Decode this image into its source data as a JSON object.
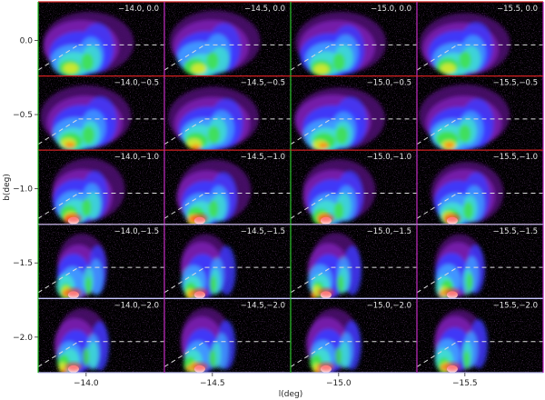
{
  "figure": {
    "xlabel": "l(deg)",
    "ylabel": "b(deg)",
    "x_ticks": [
      "−14.0",
      "−14.5",
      "−15.0",
      "−15.5"
    ],
    "y_ticks": [
      "0.0",
      "−0.5",
      "−1.0",
      "−1.5",
      "−2.0"
    ],
    "rows": [
      {
        "b": "0.0",
        "border": "#d22020",
        "panels": [
          "−14.0, 0.0",
          "−14.5, 0.0",
          "−15.0, 0.0",
          "−15.5, 0.0"
        ]
      },
      {
        "b": "-0.5",
        "border": "#d22020",
        "panels": [
          "−14.0,−0.5",
          "−14.5,−0.5",
          "−15.0,−0.5",
          "−15.5,−0.5"
        ]
      },
      {
        "b": "-1.0",
        "border": "#d22020",
        "panels": [
          "−14.0,−1.0",
          "−14.5,−1.0",
          "−15.0,−1.0",
          "−15.5,−1.0"
        ]
      },
      {
        "b": "-1.5",
        "border": "#c8c8ff",
        "panels": [
          "−14.0,−1.5",
          "−14.5,−1.5",
          "−15.0,−1.5",
          "−15.5,−1.5"
        ]
      },
      {
        "b": "-2.0",
        "border": "#c8c8ff",
        "panels": [
          "−14.0,−2.0",
          "−14.5,−2.0",
          "−15.0,−2.0",
          "−15.5,−2.0"
        ]
      }
    ],
    "column_border_colors": [
      "#20c020",
      "#c020c0",
      "#20c020",
      "#c020c0"
    ],
    "colormap": [
      "#000000",
      "#4a0a6e",
      "#7a1fb0",
      "#3b3bff",
      "#3fa0ff",
      "#3fe0d0",
      "#40e040",
      "#d8e830",
      "#ff8a10",
      "#ff2020",
      "#ffffff"
    ],
    "dashed_line_color": "#dddddd",
    "panel_background": "#000000"
  }
}
